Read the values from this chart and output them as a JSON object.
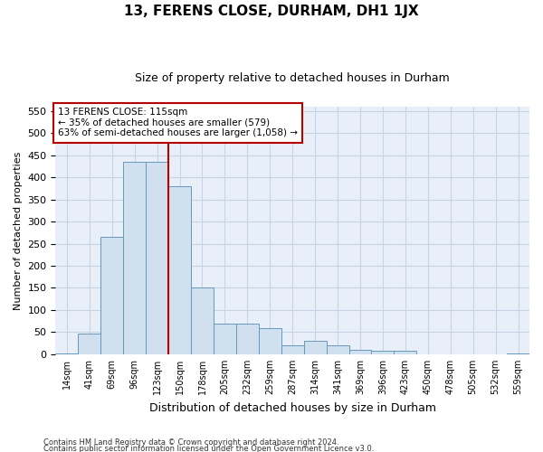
{
  "title": "13, FERENS CLOSE, DURHAM, DH1 1JX",
  "subtitle": "Size of property relative to detached houses in Durham",
  "xlabel": "Distribution of detached houses by size in Durham",
  "ylabel": "Number of detached properties",
  "footnote1": "Contains HM Land Registry data © Crown copyright and database right 2024.",
  "footnote2": "Contains public sector information licensed under the Open Government Licence v3.0.",
  "annotation_title": "13 FERENS CLOSE: 115sqm",
  "annotation_line1": "← 35% of detached houses are smaller (579)",
  "annotation_line2": "63% of semi-detached houses are larger (1,058) →",
  "bar_categories": [
    "14sqm",
    "41sqm",
    "69sqm",
    "96sqm",
    "123sqm",
    "150sqm",
    "178sqm",
    "205sqm",
    "232sqm",
    "259sqm",
    "287sqm",
    "314sqm",
    "341sqm",
    "369sqm",
    "396sqm",
    "423sqm",
    "450sqm",
    "478sqm",
    "505sqm",
    "532sqm",
    "559sqm"
  ],
  "bar_values": [
    2,
    47,
    265,
    435,
    435,
    380,
    150,
    70,
    70,
    60,
    20,
    30,
    20,
    10,
    8,
    8,
    0,
    0,
    0,
    0,
    2
  ],
  "bar_color": "#d0e0ef",
  "bar_edge_color": "#6699bb",
  "vline_x": 4.5,
  "vline_color": "#bb0000",
  "ylim": [
    0,
    560
  ],
  "yticks": [
    0,
    50,
    100,
    150,
    200,
    250,
    300,
    350,
    400,
    450,
    500,
    550
  ],
  "grid_color": "#c5d5e5",
  "bg_color": "#e8eff8",
  "title_fontsize": 11,
  "subtitle_fontsize": 9
}
